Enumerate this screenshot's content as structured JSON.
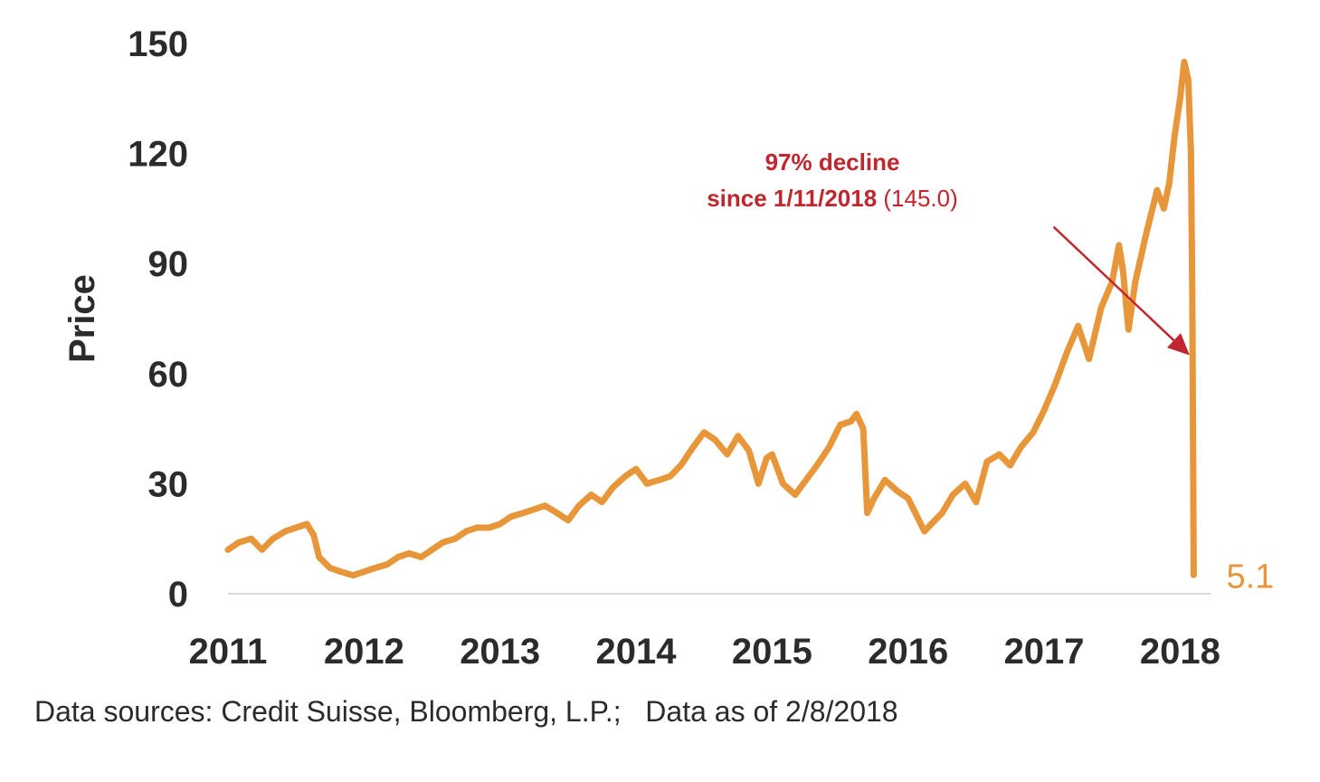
{
  "chart_data": {
    "type": "line",
    "ylabel": "Price",
    "xlabel": "",
    "xlim": [
      2011,
      2018.25
    ],
    "ylim": [
      0,
      150
    ],
    "y_ticks": [
      0,
      30,
      60,
      90,
      120,
      150
    ],
    "x_ticks": [
      "2011",
      "2012",
      "2013",
      "2014",
      "2015",
      "2016",
      "2017",
      "2018"
    ],
    "grid": false,
    "colors": {
      "series": "#E8963A",
      "annotation": "#C0262D",
      "axis": "#d9d9d9"
    },
    "series": [
      {
        "name": "",
        "points": [
          [
            2011.0,
            12
          ],
          [
            2011.08,
            14
          ],
          [
            2011.17,
            15
          ],
          [
            2011.25,
            12
          ],
          [
            2011.33,
            15
          ],
          [
            2011.42,
            17
          ],
          [
            2011.5,
            18
          ],
          [
            2011.58,
            19
          ],
          [
            2011.63,
            16
          ],
          [
            2011.67,
            10
          ],
          [
            2011.75,
            7
          ],
          [
            2011.83,
            6
          ],
          [
            2011.92,
            5
          ],
          [
            2012.0,
            6
          ],
          [
            2012.08,
            7
          ],
          [
            2012.17,
            8
          ],
          [
            2012.25,
            10
          ],
          [
            2012.33,
            11
          ],
          [
            2012.42,
            10
          ],
          [
            2012.5,
            12
          ],
          [
            2012.58,
            14
          ],
          [
            2012.67,
            15
          ],
          [
            2012.75,
            17
          ],
          [
            2012.83,
            18
          ],
          [
            2012.92,
            18
          ],
          [
            2013.0,
            19
          ],
          [
            2013.08,
            21
          ],
          [
            2013.17,
            22
          ],
          [
            2013.25,
            23
          ],
          [
            2013.33,
            24
          ],
          [
            2013.42,
            22
          ],
          [
            2013.5,
            20
          ],
          [
            2013.58,
            24
          ],
          [
            2013.67,
            27
          ],
          [
            2013.75,
            25
          ],
          [
            2013.83,
            29
          ],
          [
            2013.92,
            32
          ],
          [
            2014.0,
            34
          ],
          [
            2014.08,
            30
          ],
          [
            2014.17,
            31
          ],
          [
            2014.25,
            32
          ],
          [
            2014.33,
            35
          ],
          [
            2014.42,
            40
          ],
          [
            2014.5,
            44
          ],
          [
            2014.58,
            42
          ],
          [
            2014.67,
            38
          ],
          [
            2014.75,
            43
          ],
          [
            2014.83,
            39
          ],
          [
            2014.9,
            30
          ],
          [
            2014.96,
            37
          ],
          [
            2015.0,
            38
          ],
          [
            2015.08,
            30
          ],
          [
            2015.17,
            27
          ],
          [
            2015.25,
            31
          ],
          [
            2015.33,
            35
          ],
          [
            2015.42,
            40
          ],
          [
            2015.5,
            46
          ],
          [
            2015.58,
            47
          ],
          [
            2015.62,
            49
          ],
          [
            2015.67,
            45
          ],
          [
            2015.7,
            22
          ],
          [
            2015.75,
            26
          ],
          [
            2015.83,
            31
          ],
          [
            2015.92,
            28
          ],
          [
            2016.0,
            26
          ],
          [
            2016.08,
            20
          ],
          [
            2016.12,
            17
          ],
          [
            2016.17,
            19
          ],
          [
            2016.25,
            22
          ],
          [
            2016.33,
            27
          ],
          [
            2016.42,
            30
          ],
          [
            2016.5,
            25
          ],
          [
            2016.58,
            36
          ],
          [
            2016.67,
            38
          ],
          [
            2016.75,
            35
          ],
          [
            2016.83,
            40
          ],
          [
            2016.92,
            44
          ],
          [
            2017.0,
            50
          ],
          [
            2017.08,
            57
          ],
          [
            2017.17,
            66
          ],
          [
            2017.25,
            73
          ],
          [
            2017.33,
            64
          ],
          [
            2017.42,
            78
          ],
          [
            2017.5,
            85
          ],
          [
            2017.55,
            95
          ],
          [
            2017.58,
            88
          ],
          [
            2017.62,
            72
          ],
          [
            2017.67,
            85
          ],
          [
            2017.75,
            98
          ],
          [
            2017.83,
            110
          ],
          [
            2017.88,
            105
          ],
          [
            2017.92,
            112
          ],
          [
            2017.96,
            125
          ],
          [
            2018.0,
            135
          ],
          [
            2018.03,
            145
          ],
          [
            2018.06,
            140
          ],
          [
            2018.08,
            120
          ],
          [
            2018.09,
            80
          ],
          [
            2018.1,
            5.1
          ]
        ]
      }
    ],
    "end_label": "5.1",
    "annotation": {
      "line1": "97% decline",
      "line2": "since 1/11/2018",
      "line2_suffix": " (145.0)",
      "arrow_from": [
        2017.07,
        100
      ],
      "arrow_to": [
        2018.07,
        65
      ]
    }
  },
  "footer": {
    "source": "Data sources: Credit Suisse, Bloomberg, L.P.;   Data as of 2/8/2018"
  }
}
